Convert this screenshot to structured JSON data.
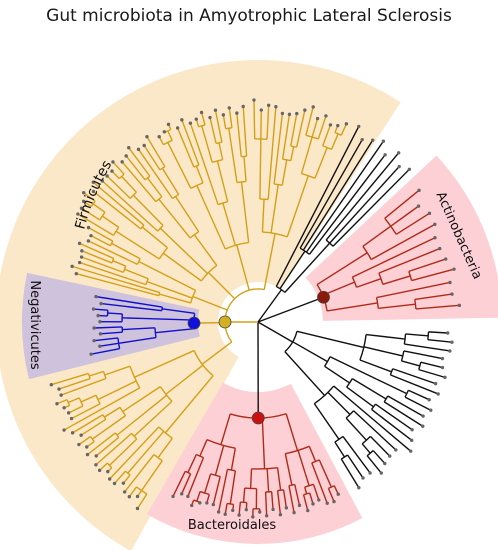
{
  "title": "Gut microbiota in Amyotrophic Lateral Sclerosis",
  "clades": {
    "firmicutes": {
      "label": "Firmicutes",
      "color": "#d4a017",
      "shade": "#fbe8c8"
    },
    "negativicutes": {
      "label": "Negativicutes",
      "color": "#1010cc",
      "shade": "#cfc2dc"
    },
    "actinobacteria": {
      "label": "Actinobacteria",
      "color": "#b02a1a",
      "shade": "#fcd0d4"
    },
    "bacteroidales": {
      "label": "Bacteroidales",
      "color": "#b02a1a",
      "shade": "#fcd0d4"
    },
    "other": {
      "color": "#111111"
    }
  },
  "node_markers": {
    "firmicutes_root": "#d4b020",
    "negativicutes_root": "#1010dd",
    "actinobacteria_root": "#8b1a0a",
    "bacteroidales_root": "#cc1010"
  }
}
